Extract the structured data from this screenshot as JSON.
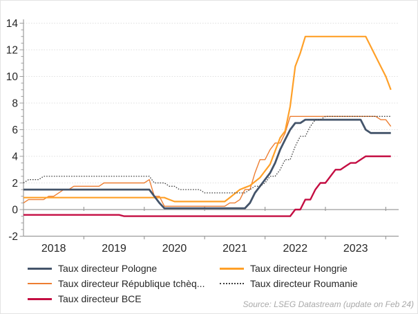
{
  "figure": {
    "source_note": "Source: LSEG Datastream (update on Feb 24)"
  },
  "chart_data": {
    "type": "line",
    "title": "",
    "xlabel": "",
    "ylabel": "",
    "x_unit": "month",
    "x_start": "2018-01",
    "x_end": "2024-02",
    "x_tick_labels": [
      "2018",
      "2019",
      "2020",
      "2021",
      "2022",
      "2023"
    ],
    "y_ticks": [
      -2,
      0,
      2,
      4,
      6,
      8,
      10,
      12,
      14
    ],
    "ylim": [
      -2,
      14.5
    ],
    "grid": "horizontal-dotted",
    "legend_position": "bottom",
    "axis_color": "#9c9c9c",
    "grid_color": "#dedede",
    "tick_label_color": "#262626",
    "series": [
      {
        "name": "Taux directeur Pologne",
        "color": "#44546A",
        "width": 2.8,
        "dash": null,
        "z": 3,
        "values": [
          1.5,
          1.5,
          1.5,
          1.5,
          1.5,
          1.5,
          1.5,
          1.5,
          1.5,
          1.5,
          1.5,
          1.5,
          1.5,
          1.5,
          1.5,
          1.5,
          1.5,
          1.5,
          1.5,
          1.5,
          1.5,
          1.5,
          1.5,
          1.5,
          1.5,
          1.5,
          1.0,
          0.5,
          0.1,
          0.1,
          0.1,
          0.1,
          0.1,
          0.1,
          0.1,
          0.1,
          0.1,
          0.1,
          0.1,
          0.1,
          0.1,
          0.1,
          0.1,
          0.1,
          0.1,
          0.5,
          1.25,
          1.75,
          2.25,
          2.75,
          3.5,
          4.5,
          5.25,
          6.0,
          6.5,
          6.5,
          6.75,
          6.75,
          6.75,
          6.75,
          6.75,
          6.75,
          6.75,
          6.75,
          6.75,
          6.75,
          6.75,
          6.75,
          6.0,
          5.75,
          5.75,
          5.75,
          5.75,
          5.75
        ]
      },
      {
        "name": "Taux directeur République tchèq...",
        "color": "#ED7D31",
        "width": 1.4,
        "dash": null,
        "z": 1,
        "values": [
          0.5,
          0.75,
          0.75,
          0.75,
          0.75,
          1.0,
          1.0,
          1.25,
          1.5,
          1.5,
          1.75,
          1.75,
          1.75,
          1.75,
          1.75,
          1.75,
          2.0,
          2.0,
          2.0,
          2.0,
          2.0,
          2.0,
          2.0,
          2.0,
          2.0,
          2.25,
          1.0,
          1.0,
          0.25,
          0.25,
          0.25,
          0.25,
          0.25,
          0.25,
          0.25,
          0.25,
          0.25,
          0.25,
          0.25,
          0.25,
          0.25,
          0.5,
          0.5,
          0.75,
          1.5,
          1.5,
          2.75,
          3.75,
          3.75,
          4.5,
          5.0,
          5.0,
          5.75,
          7.0,
          7.0,
          7.0,
          7.0,
          7.0,
          7.0,
          7.0,
          7.0,
          7.0,
          7.0,
          7.0,
          7.0,
          7.0,
          7.0,
          7.0,
          7.0,
          7.0,
          7.0,
          6.75,
          6.75,
          6.25
        ]
      },
      {
        "name": "Taux directeur BCE",
        "color": "#C40D42",
        "width": 2.4,
        "dash": null,
        "z": 4,
        "values": [
          -0.4,
          -0.4,
          -0.4,
          -0.4,
          -0.4,
          -0.4,
          -0.4,
          -0.4,
          -0.4,
          -0.4,
          -0.4,
          -0.4,
          -0.4,
          -0.4,
          -0.4,
          -0.4,
          -0.4,
          -0.4,
          -0.4,
          -0.4,
          -0.5,
          -0.5,
          -0.5,
          -0.5,
          -0.5,
          -0.5,
          -0.5,
          -0.5,
          -0.5,
          -0.5,
          -0.5,
          -0.5,
          -0.5,
          -0.5,
          -0.5,
          -0.5,
          -0.5,
          -0.5,
          -0.5,
          -0.5,
          -0.5,
          -0.5,
          -0.5,
          -0.5,
          -0.5,
          -0.5,
          -0.5,
          -0.5,
          -0.5,
          -0.5,
          -0.5,
          -0.5,
          -0.5,
          -0.5,
          0.0,
          0.0,
          0.75,
          0.75,
          1.5,
          2.0,
          2.0,
          2.5,
          3.0,
          3.0,
          3.25,
          3.5,
          3.5,
          3.75,
          4.0,
          4.0,
          4.0,
          4.0,
          4.0,
          4.0
        ]
      },
      {
        "name": "Taux directeur Hongrie",
        "color": "#FFA028",
        "width": 2.2,
        "dash": null,
        "z": 2,
        "values": [
          0.9,
          0.9,
          0.9,
          0.9,
          0.9,
          0.9,
          0.9,
          0.9,
          0.9,
          0.9,
          0.9,
          0.9,
          0.9,
          0.9,
          0.9,
          0.9,
          0.9,
          0.9,
          0.9,
          0.9,
          0.9,
          0.9,
          0.9,
          0.9,
          0.9,
          0.9,
          0.9,
          0.9,
          0.9,
          0.75,
          0.6,
          0.6,
          0.6,
          0.6,
          0.6,
          0.6,
          0.6,
          0.6,
          0.6,
          0.6,
          0.6,
          0.9,
          1.2,
          1.5,
          1.65,
          1.8,
          2.1,
          2.4,
          2.9,
          3.4,
          4.4,
          5.4,
          5.9,
          7.75,
          10.75,
          11.75,
          13.0,
          13.0,
          13.0,
          13.0,
          13.0,
          13.0,
          13.0,
          13.0,
          13.0,
          13.0,
          13.0,
          13.0,
          13.0,
          12.25,
          11.5,
          10.75,
          10.0,
          9.0
        ]
      },
      {
        "name": "Taux directeur Roumanie",
        "color": "#404040",
        "width": 1.3,
        "dash": "1.6 2",
        "z": 5,
        "values": [
          2.0,
          2.25,
          2.25,
          2.25,
          2.5,
          2.5,
          2.5,
          2.5,
          2.5,
          2.5,
          2.5,
          2.5,
          2.5,
          2.5,
          2.5,
          2.5,
          2.5,
          2.5,
          2.5,
          2.5,
          2.5,
          2.5,
          2.5,
          2.5,
          2.5,
          2.5,
          2.0,
          2.0,
          2.0,
          1.75,
          1.75,
          1.5,
          1.5,
          1.5,
          1.5,
          1.5,
          1.25,
          1.25,
          1.25,
          1.25,
          1.25,
          1.25,
          1.25,
          1.25,
          1.25,
          1.5,
          1.75,
          1.75,
          2.0,
          2.5,
          2.5,
          3.0,
          3.75,
          3.75,
          4.75,
          5.5,
          5.5,
          6.25,
          6.75,
          6.75,
          7.0,
          7.0,
          7.0,
          7.0,
          7.0,
          7.0,
          7.0,
          7.0,
          7.0,
          7.0,
          7.0,
          7.0,
          7.0,
          7.0
        ]
      }
    ]
  }
}
